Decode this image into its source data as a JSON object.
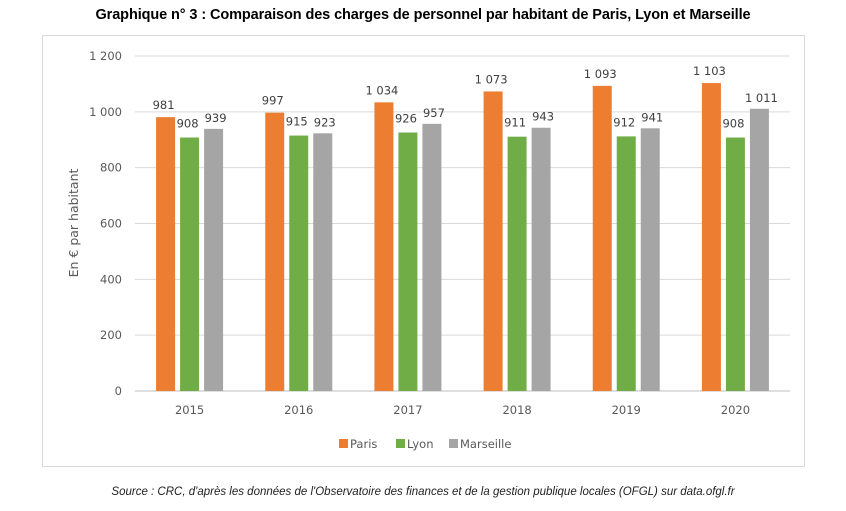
{
  "title": "Graphique n° 3 : Comparaison des charges de personnel par habitant de Paris, Lyon et Marseille",
  "source": "Source : CRC, d'après les données de l'Observatoire des finances et de la gestion publique locales (OFGL) sur data.ofgl.fr",
  "chart_data": {
    "type": "bar",
    "title": "Graphique n° 3 : Comparaison des charges de personnel par habitant de Paris, Lyon et Marseille",
    "xlabel": "",
    "ylabel": "En € par habitant",
    "ylim": [
      0,
      1200
    ],
    "yticks": [
      0,
      200,
      400,
      600,
      800,
      1000,
      1200
    ],
    "ytick_labels": [
      "0",
      "200",
      "400",
      "600",
      "800",
      "1 000",
      "1 200"
    ],
    "grid": true,
    "legend_position": "bottom-center",
    "categories": [
      "2015",
      "2016",
      "2017",
      "2018",
      "2019",
      "2020"
    ],
    "series": [
      {
        "name": "Paris",
        "color": "#ed7d31",
        "values": [
          981,
          997,
          1034,
          1073,
          1093,
          1103
        ],
        "labels": [
          "981",
          "997",
          "1 034",
          "1 073",
          "1 093",
          "1 103"
        ]
      },
      {
        "name": "Lyon",
        "color": "#70ad47",
        "values": [
          908,
          915,
          926,
          911,
          912,
          908
        ],
        "labels": [
          "908",
          "915",
          "926",
          "911",
          "912",
          "908"
        ]
      },
      {
        "name": "Marseille",
        "color": "#a5a5a5",
        "values": [
          939,
          923,
          957,
          943,
          941,
          1011
        ],
        "labels": [
          "939",
          "923",
          "957",
          "943",
          "941",
          "1 011"
        ]
      }
    ]
  }
}
